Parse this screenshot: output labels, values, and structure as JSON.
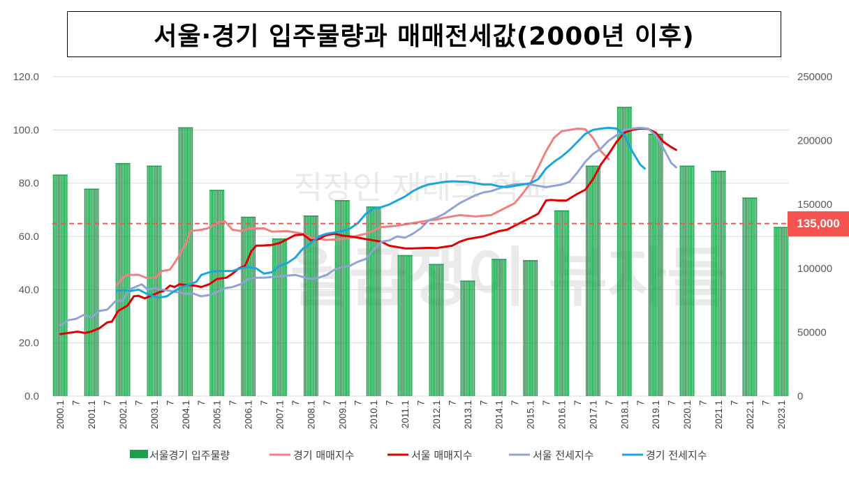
{
  "title": "서울·경기 입주물량과 매매전세값(2000년 이후)",
  "watermark": {
    "line1": "직장인 재테크 학교",
    "line2": "월급쟁이 부자들"
  },
  "reference_line": {
    "value": 135000,
    "label": "135,000",
    "color": "#f4544f"
  },
  "chart_data": {
    "type": "bar+line",
    "left_axis": {
      "min": 0,
      "max": 120,
      "ticks": [
        "0.0",
        "20.0",
        "40.0",
        "60.0",
        "80.0",
        "100.0",
        "120.0"
      ]
    },
    "right_axis": {
      "min": 0,
      "max": 250000,
      "ticks": [
        "0",
        "50000",
        "100000",
        "150000",
        "200000",
        "250000"
      ]
    },
    "grid": true,
    "legend_position": "bottom",
    "x_labels": [
      "2000.1",
      "7",
      "2001.1",
      "7",
      "2002.1",
      "7",
      "2003.1",
      "7",
      "2004.1",
      "7",
      "2005.1",
      "7",
      "2006.1",
      "7",
      "2007.1",
      "7",
      "2008.1",
      "7",
      "2009.1",
      "7",
      "2010.1",
      "7",
      "2011.1",
      "7",
      "2012.1",
      "7",
      "2013.1",
      "7",
      "2014.1",
      "7",
      "2015.1",
      "7",
      "2016.1",
      "7",
      "2017.1",
      "7",
      "2018.1",
      "7",
      "2019.1",
      "7",
      "2020.1",
      "7",
      "2021.1",
      "7",
      "2022.1",
      "7",
      "2023.1"
    ],
    "supply": {
      "name": "서울경기 입주물량",
      "color": "#1aa04a",
      "years": [
        "2000",
        "2001",
        "2002",
        "2003",
        "2004",
        "2005",
        "2006",
        "2007",
        "2008",
        "2009",
        "2010",
        "2011",
        "2012",
        "2013",
        "2014",
        "2015",
        "2016",
        "2017",
        "2018",
        "2019",
        "2020",
        "2021",
        "2022",
        "2023"
      ],
      "values": [
        173000,
        162000,
        182000,
        180000,
        210000,
        161000,
        140000,
        123000,
        141000,
        153000,
        148000,
        110000,
        103000,
        90000,
        107000,
        106000,
        145000,
        180000,
        226000,
        205000,
        180000,
        176000,
        155000,
        132000
      ]
    },
    "series": [
      {
        "name": "경기 매매지수",
        "color": "#f08080",
        "points": [
          [
            0,
            null
          ],
          [
            3.6,
            41.8
          ],
          [
            4.2,
            45.5
          ],
          [
            5.0,
            45.6
          ],
          [
            5.5,
            44.4
          ],
          [
            6.1,
            44.5
          ],
          [
            6.5,
            47.0
          ],
          [
            7.0,
            47.5
          ],
          [
            7.4,
            51.0
          ],
          [
            8.0,
            57.0
          ],
          [
            8.3,
            62.0
          ],
          [
            9.0,
            62.5
          ],
          [
            9.4,
            63.0
          ],
          [
            10.0,
            65.0
          ],
          [
            10.5,
            65.7
          ],
          [
            11.0,
            62.5
          ],
          [
            11.6,
            62.0
          ],
          [
            12.0,
            63.0
          ],
          [
            13.0,
            63.0
          ],
          [
            13.5,
            61.8
          ],
          [
            14.5,
            62.0
          ],
          [
            15.5,
            61.0
          ],
          [
            16.0,
            59.5
          ],
          [
            17.0,
            58.7
          ],
          [
            18.0,
            59.0
          ],
          [
            18.5,
            59.6
          ],
          [
            19.5,
            61.0
          ],
          [
            20.5,
            63.5
          ],
          [
            21.5,
            64.0
          ],
          [
            22.5,
            65.0
          ],
          [
            23.5,
            66.0
          ],
          [
            24.0,
            66.3
          ],
          [
            24.5,
            67.0
          ],
          [
            25.5,
            68.0
          ],
          [
            26.5,
            67.5
          ],
          [
            27.5,
            68.0
          ],
          [
            28.5,
            71.0
          ],
          [
            29.0,
            72.5
          ],
          [
            29.5,
            76.0
          ],
          [
            30.0,
            80.0
          ],
          [
            30.5,
            86.0
          ],
          [
            31.0,
            92.0
          ],
          [
            31.5,
            97.0
          ],
          [
            32.0,
            99.5
          ],
          [
            32.5,
            100.0
          ],
          [
            33.0,
            100.5
          ],
          [
            33.5,
            100.3
          ],
          [
            34.0,
            97.0
          ],
          [
            34.5,
            92.0
          ],
          [
            35.0,
            89.0
          ]
        ]
      },
      {
        "name": "서울 매매지수",
        "color": "#e00000",
        "points": [
          [
            0,
            23.3
          ],
          [
            0.6,
            23.8
          ],
          [
            1.1,
            24.2
          ],
          [
            1.6,
            23.7
          ],
          [
            2.0,
            24.3
          ],
          [
            2.5,
            25.5
          ],
          [
            3.0,
            27.7
          ],
          [
            3.3,
            28.0
          ],
          [
            3.7,
            32.0
          ],
          [
            4.0,
            33.0
          ],
          [
            4.3,
            34.0
          ],
          [
            4.7,
            37.5
          ],
          [
            5.0,
            37.7
          ],
          [
            5.4,
            36.7
          ],
          [
            5.8,
            37.7
          ],
          [
            6.3,
            39.0
          ],
          [
            6.6,
            39.5
          ],
          [
            7.0,
            41.5
          ],
          [
            7.3,
            41.0
          ],
          [
            7.6,
            42.0
          ],
          [
            8.0,
            41.8
          ],
          [
            8.6,
            41.5
          ],
          [
            9.0,
            41.0
          ],
          [
            9.5,
            42.0
          ],
          [
            10.0,
            44.0
          ],
          [
            10.6,
            44.5
          ],
          [
            11.0,
            46.0
          ],
          [
            11.4,
            48.0
          ],
          [
            11.8,
            49.0
          ],
          [
            12.2,
            54.5
          ],
          [
            12.5,
            56.5
          ],
          [
            13.0,
            56.6
          ],
          [
            13.5,
            56.8
          ],
          [
            14.0,
            57.5
          ],
          [
            14.5,
            59.0
          ],
          [
            15.0,
            60.5
          ],
          [
            15.5,
            60.7
          ],
          [
            16.0,
            58.5
          ],
          [
            16.5,
            59.0
          ],
          [
            17.0,
            60.5
          ],
          [
            17.5,
            61.0
          ],
          [
            18.0,
            60.3
          ],
          [
            18.5,
            60.0
          ],
          [
            19.0,
            59.5
          ],
          [
            19.5,
            59.0
          ],
          [
            20.5,
            58.0
          ],
          [
            21.0,
            56.5
          ],
          [
            22.0,
            55.5
          ],
          [
            22.5,
            55.5
          ],
          [
            23.5,
            55.7
          ],
          [
            24.0,
            55.6
          ],
          [
            25.0,
            56.5
          ],
          [
            25.5,
            58.0
          ],
          [
            26.0,
            59.0
          ],
          [
            27.0,
            60.0
          ],
          [
            27.5,
            61.0
          ],
          [
            28.0,
            62.0
          ],
          [
            28.5,
            62.5
          ],
          [
            29.0,
            64.0
          ],
          [
            29.5,
            65.5
          ],
          [
            30.0,
            67.0
          ],
          [
            30.5,
            68.5
          ],
          [
            31.0,
            73.5
          ],
          [
            31.3,
            73.7
          ],
          [
            31.8,
            73.5
          ],
          [
            32.3,
            73.5
          ],
          [
            33.0,
            76.0
          ],
          [
            33.5,
            77.5
          ],
          [
            34.0,
            81.5
          ],
          [
            34.5,
            87.0
          ],
          [
            35.0,
            91.0
          ],
          [
            35.5,
            95.5
          ],
          [
            36.0,
            99.0
          ],
          [
            36.5,
            100.0
          ],
          [
            37.0,
            100.5
          ],
          [
            37.5,
            100.4
          ],
          [
            38.0,
            99.0
          ],
          [
            38.5,
            95.5
          ],
          [
            39.0,
            93.5
          ],
          [
            39.3,
            92.5
          ]
        ]
      },
      {
        "name": "서울 전세지수",
        "color": "#8fa3d4",
        "points": [
          [
            0,
            26.5
          ],
          [
            0.5,
            28.5
          ],
          [
            1.0,
            29.0
          ],
          [
            1.5,
            30.5
          ],
          [
            2.0,
            29.5
          ],
          [
            2.5,
            32.0
          ],
          [
            3.0,
            32.5
          ],
          [
            3.5,
            35.5
          ],
          [
            4.0,
            36.0
          ],
          [
            4.4,
            40.0
          ],
          [
            4.8,
            41.0
          ],
          [
            5.2,
            42.0
          ],
          [
            5.6,
            40.0
          ],
          [
            6.0,
            40.5
          ],
          [
            6.5,
            40.0
          ],
          [
            7.0,
            39.5
          ],
          [
            7.5,
            39.0
          ],
          [
            8.0,
            38.5
          ],
          [
            8.5,
            38.5
          ],
          [
            9.0,
            37.5
          ],
          [
            9.5,
            38.0
          ],
          [
            10.0,
            39.0
          ],
          [
            10.5,
            40.5
          ],
          [
            11.0,
            41.0
          ],
          [
            11.5,
            42.0
          ],
          [
            12.0,
            44.0
          ],
          [
            12.5,
            44.5
          ],
          [
            13.0,
            44.5
          ],
          [
            14.0,
            45.0
          ],
          [
            15.0,
            45.5
          ],
          [
            16.0,
            44.0
          ],
          [
            16.5,
            44.5
          ],
          [
            17.0,
            45.5
          ],
          [
            17.5,
            47.5
          ],
          [
            18.0,
            48.5
          ],
          [
            18.5,
            49.0
          ],
          [
            19.0,
            50.5
          ],
          [
            19.5,
            51.5
          ],
          [
            20.0,
            55.0
          ],
          [
            20.5,
            58.0
          ],
          [
            21.0,
            58.5
          ],
          [
            21.5,
            60.0
          ],
          [
            22.0,
            59.5
          ],
          [
            22.5,
            61.0
          ],
          [
            23.0,
            63.0
          ],
          [
            23.5,
            66.0
          ],
          [
            24.0,
            67.0
          ],
          [
            24.5,
            68.5
          ],
          [
            25.0,
            70.5
          ],
          [
            25.5,
            72.5
          ],
          [
            26.0,
            74.0
          ],
          [
            26.5,
            75.5
          ],
          [
            27.0,
            76.5
          ],
          [
            27.5,
            77.0
          ],
          [
            28.0,
            78.0
          ],
          [
            28.5,
            79.0
          ],
          [
            29.0,
            79.5
          ],
          [
            29.5,
            79.7
          ],
          [
            30.0,
            79.5
          ],
          [
            30.5,
            79.0
          ],
          [
            31.0,
            78.5
          ],
          [
            31.5,
            79.0
          ],
          [
            32.0,
            79.5
          ],
          [
            32.5,
            80.5
          ],
          [
            33.0,
            84.0
          ],
          [
            33.5,
            88.0
          ],
          [
            34.0,
            91.0
          ],
          [
            34.5,
            93.0
          ],
          [
            35.0,
            96.0
          ],
          [
            35.5,
            98.0
          ],
          [
            36.0,
            100.0
          ],
          [
            36.5,
            100.5
          ],
          [
            37.0,
            100.8
          ],
          [
            37.5,
            100.5
          ],
          [
            38.0,
            98.0
          ],
          [
            38.5,
            93.0
          ],
          [
            39.0,
            87.5
          ],
          [
            39.3,
            86.0
          ]
        ]
      },
      {
        "name": "경기 전세지수",
        "color": "#1aa6dc",
        "points": [
          [
            3.6,
            39.5
          ],
          [
            4.0,
            39.8
          ],
          [
            4.5,
            39.5
          ],
          [
            5.0,
            40.0
          ],
          [
            5.5,
            38.5
          ],
          [
            6.0,
            37.5
          ],
          [
            6.3,
            37.0
          ],
          [
            6.8,
            37.5
          ],
          [
            7.3,
            39.5
          ],
          [
            7.8,
            41.0
          ],
          [
            8.3,
            42.0
          ],
          [
            8.7,
            43.0
          ],
          [
            9.0,
            45.5
          ],
          [
            9.5,
            46.5
          ],
          [
            10.0,
            47.0
          ],
          [
            11.0,
            47.0
          ],
          [
            11.5,
            48.0
          ],
          [
            12.0,
            48.5
          ],
          [
            12.5,
            48.0
          ],
          [
            13.0,
            46.0
          ],
          [
            13.5,
            46.5
          ],
          [
            14.0,
            49.0
          ],
          [
            14.5,
            50.0
          ],
          [
            15.0,
            52.0
          ],
          [
            15.5,
            55.5
          ],
          [
            16.0,
            57.5
          ],
          [
            16.5,
            60.0
          ],
          [
            17.0,
            61.0
          ],
          [
            17.5,
            61.5
          ],
          [
            18.0,
            62.0
          ],
          [
            18.5,
            63.0
          ],
          [
            19.0,
            65.0
          ],
          [
            19.5,
            68.5
          ],
          [
            20.0,
            70.5
          ],
          [
            20.5,
            71.0
          ],
          [
            21.0,
            72.0
          ],
          [
            21.5,
            73.5
          ],
          [
            22.0,
            75.0
          ],
          [
            22.5,
            77.0
          ],
          [
            23.0,
            78.5
          ],
          [
            23.5,
            79.5
          ],
          [
            24.0,
            80.0
          ],
          [
            24.5,
            80.5
          ],
          [
            25.0,
            80.7
          ],
          [
            26.0,
            80.5
          ],
          [
            26.5,
            80.0
          ],
          [
            27.0,
            79.5
          ],
          [
            27.5,
            79.5
          ],
          [
            28.0,
            78.8
          ],
          [
            28.5,
            78.5
          ],
          [
            29.0,
            79.0
          ],
          [
            29.5,
            79.5
          ],
          [
            30.0,
            80.0
          ],
          [
            30.5,
            81.5
          ],
          [
            31.0,
            85.5
          ],
          [
            31.5,
            88.0
          ],
          [
            32.0,
            90.0
          ],
          [
            32.5,
            92.5
          ],
          [
            33.0,
            95.5
          ],
          [
            33.5,
            98.5
          ],
          [
            34.0,
            100.0
          ],
          [
            34.5,
            100.5
          ],
          [
            35.0,
            100.8
          ],
          [
            35.5,
            100.5
          ],
          [
            36.0,
            98.0
          ],
          [
            36.5,
            92.0
          ],
          [
            37.0,
            87.0
          ],
          [
            37.3,
            85.5
          ]
        ]
      }
    ]
  }
}
